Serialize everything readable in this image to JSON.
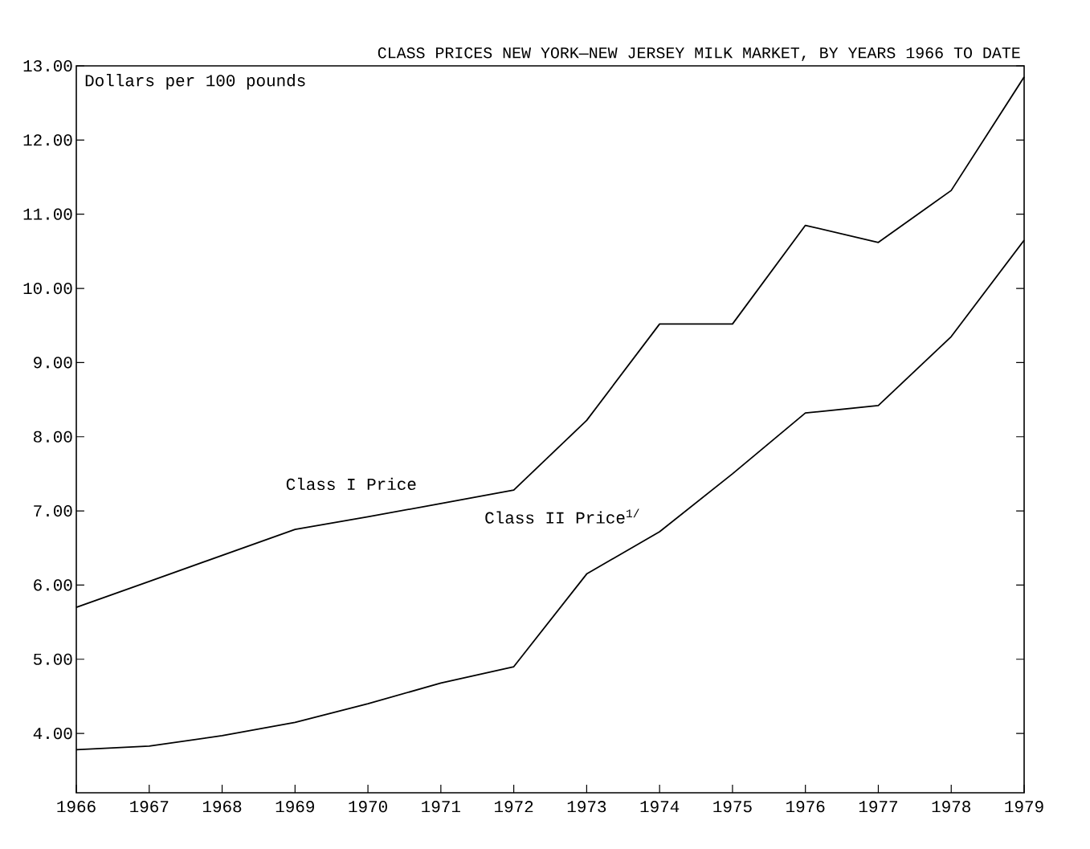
{
  "chart_data": {
    "type": "line",
    "title": "CLASS PRICES NEW YORK—NEW JERSEY MILK MARKET, BY YEARS 1966 TO DATE",
    "ylabel": "Dollars per 100 pounds",
    "x": [
      1966,
      1967,
      1968,
      1969,
      1970,
      1971,
      1972,
      1973,
      1974,
      1975,
      1976,
      1977,
      1978,
      1979
    ],
    "series": [
      {
        "name": "Class I Price",
        "color": "#000000",
        "values": [
          5.7,
          6.05,
          6.4,
          6.75,
          6.92,
          7.1,
          7.28,
          8.22,
          9.52,
          9.52,
          10.85,
          10.62,
          11.32,
          12.85
        ]
      },
      {
        "name": "Class II Price$^{1/}$",
        "color": "#000000",
        "values": [
          3.78,
          3.83,
          3.97,
          4.15,
          4.4,
          4.68,
          4.9,
          6.15,
          6.72,
          7.5,
          8.32,
          8.42,
          9.35,
          10.65
        ]
      }
    ],
    "xlim": [
      1966,
      1979
    ],
    "ylim": [
      3.2,
      13
    ],
    "xticks": [
      1966,
      1967,
      1968,
      1969,
      1970,
      1971,
      1972,
      1973,
      1974,
      1975,
      1976,
      1977,
      1978,
      1979
    ],
    "yticks": [
      {
        "value": 4,
        "label": "4.00"
      },
      {
        "value": 5,
        "label": "5.00"
      },
      {
        "value": 6,
        "label": "6.00"
      },
      {
        "value": 7,
        "label": "7.00"
      },
      {
        "value": 8,
        "label": "8.00"
      },
      {
        "value": 9,
        "label": "9.00"
      },
      {
        "value": 10,
        "label": "10.00"
      },
      {
        "value": 11,
        "label": "11.00"
      },
      {
        "value": 12,
        "label": "12.00"
      },
      {
        "value": 13,
        "label": "13.00"
      }
    ],
    "grid": false,
    "legend": false,
    "marker": "none",
    "line_style": "solid"
  }
}
